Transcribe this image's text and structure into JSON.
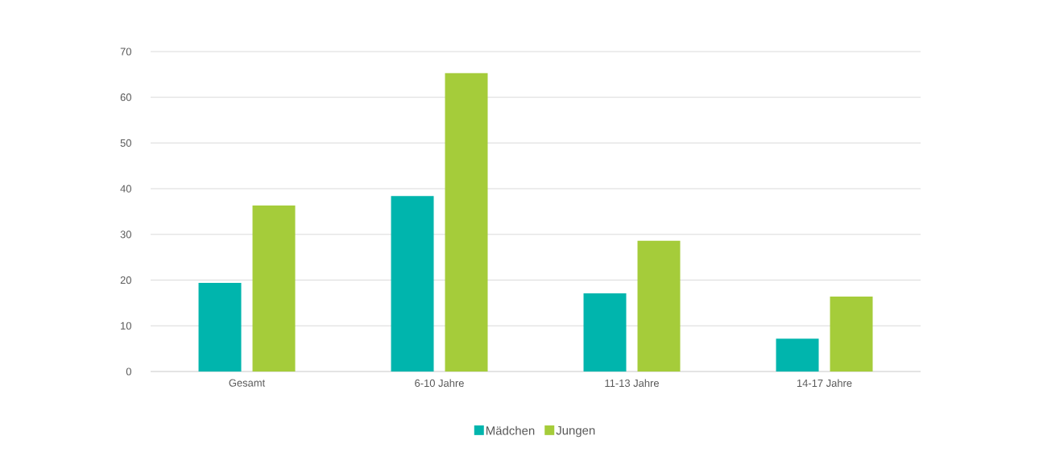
{
  "chart_data": {
    "type": "bar",
    "categories": [
      "Gesamt",
      "6-10 Jahre",
      "11-13 Jahre",
      "14-17 Jahre"
    ],
    "series": [
      {
        "name": "Mädchen",
        "color": "#00b5ad",
        "values": [
          19.4,
          38.4,
          17.1,
          7.2
        ]
      },
      {
        "name": "Jungen",
        "color": "#a5cc3a",
        "values": [
          36.3,
          65.3,
          28.6,
          16.4
        ]
      }
    ],
    "ylim": [
      0,
      70
    ],
    "yticks": [
      0,
      10,
      20,
      30,
      40,
      50,
      60,
      70
    ],
    "grid": "y",
    "legend": "bottom"
  }
}
